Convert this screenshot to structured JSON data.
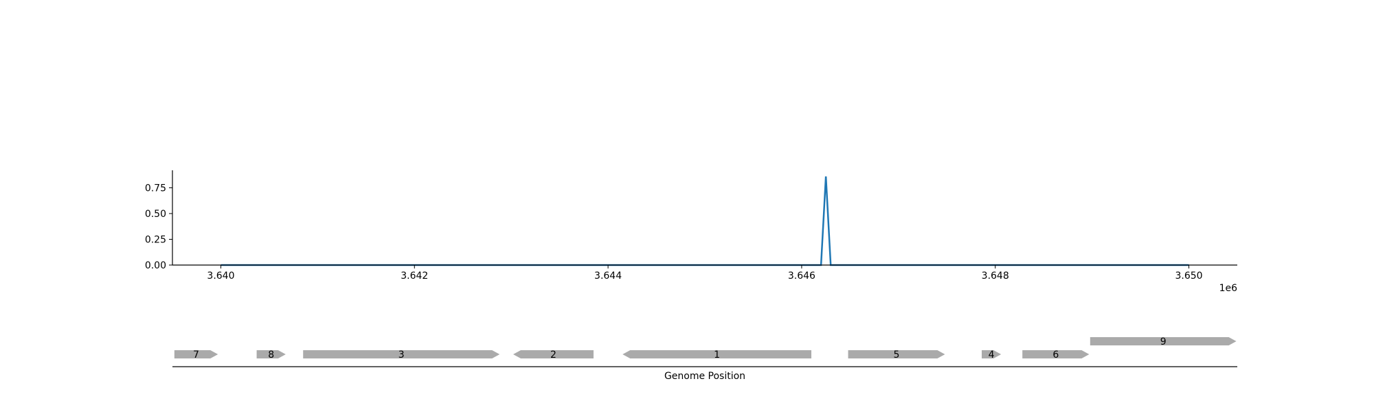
{
  "chart_data": [
    {
      "type": "line",
      "x": [
        3640000,
        3646200,
        3646250,
        3646300,
        3650000
      ],
      "y": [
        0.0,
        0.0,
        0.86,
        0.0,
        0.0
      ],
      "xlim": [
        3639500,
        3650500
      ],
      "ylim": [
        0.0,
        0.92
      ],
      "x_ticks": [
        3640000,
        3642000,
        3644000,
        3646000,
        3648000,
        3650000
      ],
      "x_tick_labels": [
        "3.640",
        "3.642",
        "3.644",
        "3.646",
        "3.648",
        "3.650"
      ],
      "x_offset_label": "1e6",
      "y_ticks": [
        0.0,
        0.25,
        0.5,
        0.75
      ],
      "y_tick_labels": [
        "0.00",
        "0.25",
        "0.50",
        "0.75"
      ],
      "series_color": "#1f77b4",
      "grid": false
    },
    {
      "type": "gene_track",
      "xlabel": "Genome Position",
      "xlim": [
        3639500,
        3650500
      ],
      "gene_color": "#aaaaaa",
      "genes": [
        {
          "label": "7",
          "start": 3639520,
          "end": 3639970,
          "strand": "+",
          "row": 0
        },
        {
          "label": "8",
          "start": 3640370,
          "end": 3640670,
          "strand": "+",
          "row": 0
        },
        {
          "label": "3",
          "start": 3640850,
          "end": 3642880,
          "strand": "+",
          "row": 0
        },
        {
          "label": "2",
          "start": 3643020,
          "end": 3643850,
          "strand": "-",
          "row": 0
        },
        {
          "label": "1",
          "start": 3644150,
          "end": 3646100,
          "strand": "-",
          "row": 0
        },
        {
          "label": "5",
          "start": 3646480,
          "end": 3647480,
          "strand": "+",
          "row": 0
        },
        {
          "label": "4",
          "start": 3647860,
          "end": 3648060,
          "strand": "+",
          "row": 0
        },
        {
          "label": "6",
          "start": 3648280,
          "end": 3648970,
          "strand": "+",
          "row": 0
        },
        {
          "label": "9",
          "start": 3648980,
          "end": 3650490,
          "strand": "+",
          "row": 1
        }
      ]
    }
  ]
}
